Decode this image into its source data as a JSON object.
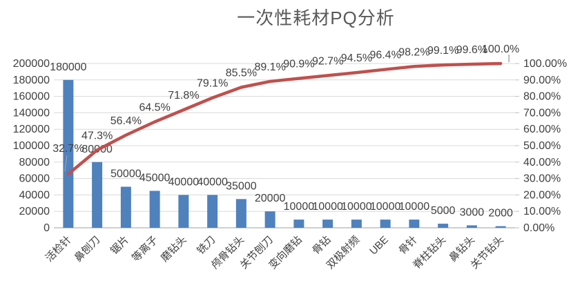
{
  "colors": {
    "bar": "#4F81BD",
    "line": "#C0504D",
    "gridline": "#D9D9D9",
    "axis_line": "#BFBFBF",
    "leader": "#A6A6A6",
    "text": "#404040",
    "title_text": "#595959",
    "background": "#FFFFFF"
  },
  "chart_data": {
    "type": "pareto",
    "title": "一次性耗材PQ分析",
    "legend": "none",
    "grid": true,
    "categories": [
      "活检针",
      "鼻刨刀",
      "锯片",
      "等离子",
      "磨钻头",
      "铣刀",
      "颅骨钻头",
      "关节刨刀",
      "变向磨钻",
      "骨钻",
      "双极射频",
      "UBE",
      "骨针",
      "脊柱钻头",
      "鼻钻头",
      "关节钻头"
    ],
    "series": [
      {
        "type": "bar",
        "values": [
          180000,
          80000,
          50000,
          45000,
          40000,
          40000,
          35000,
          20000,
          10000,
          10000,
          10000,
          10000,
          10000,
          5000,
          3000,
          2000
        ],
        "labels": [
          "180000",
          "80000",
          "50000",
          "45000",
          "40000",
          "40000",
          "35000",
          "20000",
          "10000",
          "10000",
          "10000",
          "10000",
          "10000",
          "5000",
          "3000",
          "2000"
        ]
      },
      {
        "type": "line",
        "values": [
          32.7,
          47.3,
          56.4,
          64.5,
          71.8,
          79.1,
          85.5,
          89.1,
          90.9,
          92.7,
          94.5,
          96.4,
          98.2,
          99.1,
          99.6,
          100.0
        ],
        "labels": [
          "32.7%",
          "47.3%",
          "56.4%",
          "64.5%",
          "71.8%",
          "79.1%",
          "85.5%",
          "89.1%",
          "90.9%",
          "92.7%",
          "94.5%",
          "96.4%",
          "98.2%",
          "99.1%",
          "99.6%",
          "100.0%"
        ]
      }
    ],
    "left_axis": {
      "min": 0,
      "max": 200000,
      "step": 20000,
      "tick_labels": [
        "0",
        "20000",
        "40000",
        "60000",
        "80000",
        "100000",
        "120000",
        "140000",
        "160000",
        "180000",
        "200000"
      ]
    },
    "right_axis": {
      "min": 0,
      "max": 100,
      "step": 10,
      "tick_labels": [
        "0.00%",
        "10.00%",
        "20.00%",
        "30.00%",
        "40.00%",
        "50.00%",
        "60.00%",
        "70.00%",
        "80.00%",
        "90.00%",
        "100.00%"
      ]
    }
  }
}
